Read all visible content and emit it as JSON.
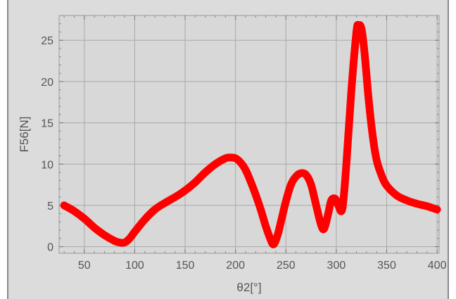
{
  "chart_data": {
    "type": "line",
    "title": "",
    "xlabel": "θ2[°]",
    "ylabel": "F56[N]",
    "xlim": [
      25,
      402
    ],
    "ylim": [
      -0.8,
      28
    ],
    "xticks": [
      50,
      100,
      150,
      200,
      250,
      300,
      350,
      400
    ],
    "yticks": [
      0,
      5,
      10,
      15,
      20,
      25
    ],
    "grid": true,
    "line_color": "#ff0000",
    "series": [
      {
        "x": [
          30,
          40,
          50,
          60,
          70,
          80,
          85,
          90,
          95,
          100,
          110,
          120,
          130,
          140,
          150,
          160,
          170,
          180,
          190,
          195,
          200,
          205,
          210,
          215,
          220,
          225,
          230,
          235,
          238,
          242,
          246,
          250,
          255,
          260,
          265,
          270,
          275,
          280,
          285,
          288,
          292,
          295,
          299,
          302,
          306,
          310,
          315,
          320,
          322,
          325,
          328,
          332,
          336,
          340,
          345,
          350,
          360,
          370,
          380,
          390,
          400
        ],
        "y": [
          5.0,
          4.3,
          3.4,
          2.3,
          1.4,
          0.7,
          0.5,
          0.5,
          1.0,
          1.8,
          3.3,
          4.5,
          5.3,
          6.0,
          6.8,
          7.8,
          9.0,
          10.0,
          10.7,
          10.8,
          10.7,
          10.2,
          9.3,
          7.9,
          6.3,
          4.5,
          2.5,
          0.8,
          0.3,
          1.5,
          3.5,
          5.5,
          7.5,
          8.5,
          8.9,
          8.7,
          7.5,
          5.0,
          2.6,
          2.2,
          4.0,
          5.6,
          5.8,
          5.0,
          4.6,
          10.0,
          19.0,
          26.0,
          26.8,
          26.4,
          23.5,
          18.0,
          13.5,
          10.5,
          8.6,
          7.4,
          6.2,
          5.6,
          5.2,
          4.9,
          4.5
        ]
      }
    ]
  }
}
